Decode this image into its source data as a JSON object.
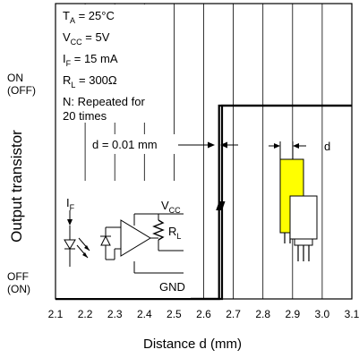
{
  "chart_data": {
    "type": "line",
    "title": "",
    "xlabel": "Distance d (mm)",
    "ylabel": "Output transistor",
    "xlim": [
      2.1,
      3.1
    ],
    "x_ticks": [
      "2.1",
      "2.2",
      "2.3",
      "2.4",
      "2.5",
      "2.6",
      "2.7",
      "2.8",
      "2.9",
      "3.0",
      "3.1"
    ],
    "y_levels": {
      "on": "ON",
      "on_sub": "(OFF)",
      "off": "OFF",
      "off_sub": "(ON)"
    },
    "grid": true,
    "series": [
      {
        "x": [
          2.1,
          2.652,
          2.652,
          3.1
        ],
        "y": [
          0,
          0,
          1,
          1
        ]
      },
      {
        "x": [
          2.1,
          2.662,
          2.662,
          3.1
        ],
        "y": [
          0,
          0,
          1,
          1
        ]
      }
    ],
    "conditions": {
      "ta_main": "T",
      "ta_sub": "A",
      "ta_val": " = 25°C",
      "vcc_main": "V",
      "vcc_sub": "CC",
      "vcc_val": " = 5V",
      "if_main": "I",
      "if_sub": "F",
      "if_val": " = 15 mA",
      "rl_main": "R",
      "rl_sub": "L",
      "rl_val": " = 300Ω",
      "n_line1": "N: Repeated for",
      "n_line2": "20 times"
    },
    "annotations": {
      "d_step": "d = 0.01 mm",
      "d_label": "d"
    },
    "circuit": {
      "if_main": "I",
      "if_sub": "F",
      "vcc_main": "V",
      "vcc_sub": "CC",
      "rl_main": "R",
      "rl_sub": "L",
      "gnd": "GND"
    },
    "colors": {
      "emitter_block": "#ffff00",
      "line": "#000000"
    }
  }
}
